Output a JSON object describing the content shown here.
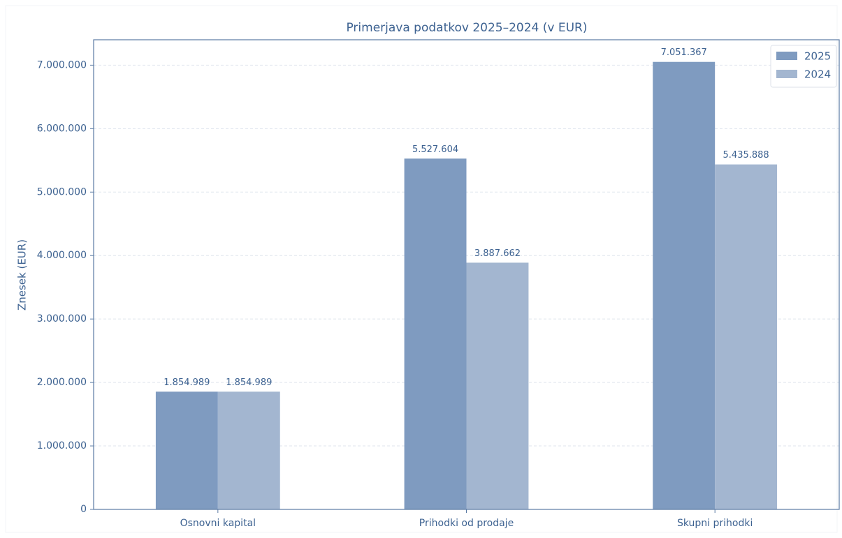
{
  "chart_data": {
    "type": "bar",
    "title": "Primerjava podatkov 2025–2024 (v EUR)",
    "ylabel": "Znesek (EUR)",
    "categories": [
      "Osnovni kapital",
      "Prihodki od prodaje",
      "Skupni prihodki"
    ],
    "series": [
      {
        "name": "2025",
        "color": "#7f9bc0",
        "values": [
          1854989,
          5527604,
          7051367
        ],
        "value_labels": [
          "1.854.989",
          "5.527.604",
          "7.051.367"
        ]
      },
      {
        "name": "2024",
        "color": "#a3b6d0",
        "values": [
          1854989,
          3887662,
          5435888
        ],
        "value_labels": [
          "1.854.989",
          "3.887.662",
          "5.435.888"
        ]
      }
    ],
    "ylim": [
      0,
      7400000
    ],
    "yticks": [
      0,
      {
        "value": 1000000,
        "label": "1.000.000"
      },
      {
        "value": 2000000,
        "label": "2.000.000"
      },
      {
        "value": 3000000,
        "label": "3.000.000"
      },
      {
        "value": 4000000,
        "label": "4.000.000"
      },
      {
        "value": 5000000,
        "label": "5.000.000"
      },
      {
        "value": 6000000,
        "label": "6.000.000"
      },
      {
        "value": 7000000,
        "label": "7.000.000"
      }
    ],
    "grid": true,
    "legend": "upper right"
  }
}
